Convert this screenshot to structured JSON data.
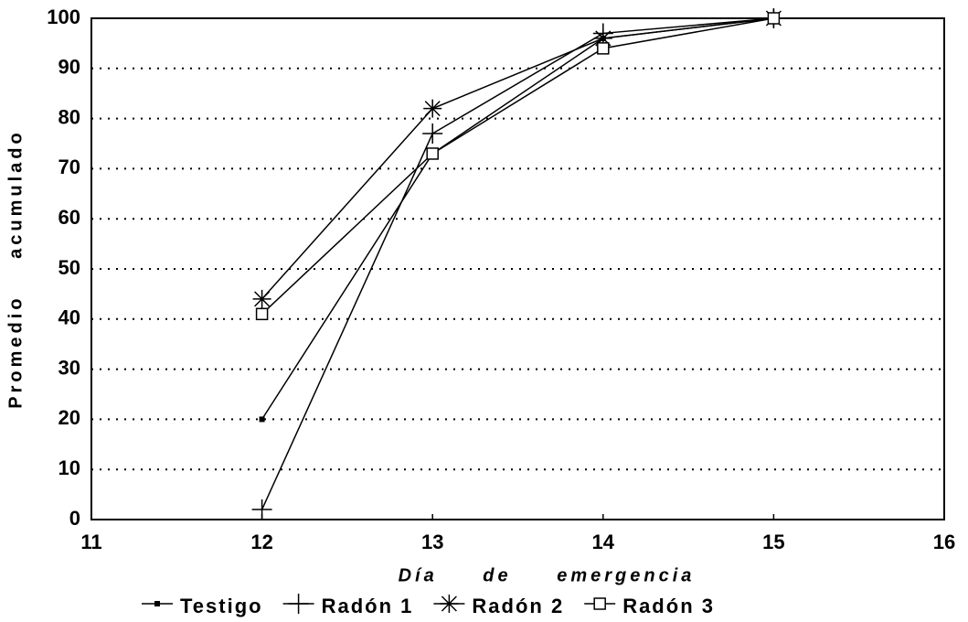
{
  "chart_data": {
    "type": "line",
    "x_label": "Día de emergencia",
    "y_label": "Promedio acumulado",
    "x": [
      12,
      13,
      14,
      15
    ],
    "series": [
      {
        "name": "Testigo",
        "color": "#000000",
        "marker": "dot",
        "values": [
          20,
          73,
          96,
          100
        ]
      },
      {
        "name": "Radón 1",
        "color": "#000000",
        "marker": "plus",
        "values": [
          2,
          77,
          97,
          100
        ]
      },
      {
        "name": "Radón 2",
        "color": "#000000",
        "marker": "asterisk",
        "values": [
          44,
          82,
          96,
          100
        ]
      },
      {
        "name": "Radón 3",
        "color": "#000000",
        "marker": "square",
        "values": [
          41,
          73,
          94,
          100
        ]
      }
    ],
    "xlim": [
      11,
      16
    ],
    "xticks": [
      11,
      12,
      13,
      14,
      15,
      16
    ],
    "ylim": [
      0,
      100
    ],
    "yticks": [
      0,
      10,
      20,
      30,
      40,
      50,
      60,
      70,
      80,
      90,
      100
    ],
    "grid": true,
    "legend": "bottom"
  }
}
